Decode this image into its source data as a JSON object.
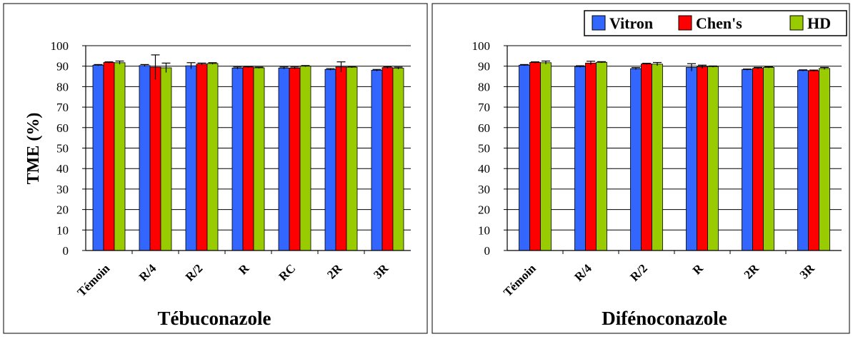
{
  "colors": {
    "vitron": "#3366FF",
    "chens": "#FF0000",
    "hd": "#99CC00",
    "frame": "#000000",
    "grid": "#000000"
  },
  "legend": {
    "placement": "top-right",
    "items": [
      {
        "label": "Vitron",
        "color": "#3366FF"
      },
      {
        "label": "Chen's",
        "color": "#FF0000"
      },
      {
        "label": "HD",
        "color": "#99CC00"
      }
    ]
  },
  "chart_data": [
    {
      "type": "bar",
      "title": "",
      "xlabel": "Tébuconazole",
      "ylabel": "TME (%)",
      "ylim": [
        0,
        100
      ],
      "yticks": [
        "0",
        "10",
        "20",
        "30",
        "40",
        "50",
        "60",
        "70",
        "80",
        "90",
        "100"
      ],
      "grid": "horizontal",
      "categories": [
        "Témoin",
        "R/4",
        "R/2",
        "R",
        "RC",
        "2R",
        "3R"
      ],
      "series": [
        {
          "name": "Vitron",
          "values": [
            90.5,
            90.3,
            90.2,
            89.1,
            89.1,
            88.4,
            88.0
          ],
          "errors": [
            0.3,
            0.5,
            1.5,
            0.5,
            0.5,
            0.4,
            0.4
          ]
        },
        {
          "name": "Chen's",
          "values": [
            91.8,
            89.5,
            91.0,
            89.6,
            89.1,
            89.6,
            89.3
          ],
          "errors": [
            0.3,
            6.0,
            0.5,
            0.3,
            0.5,
            2.5,
            0.4
          ]
        },
        {
          "name": "HD",
          "values": [
            91.7,
            89.2,
            91.3,
            89.2,
            90.0,
            89.5,
            89.0
          ],
          "errors": [
            0.8,
            2.3,
            0.4,
            0.3,
            0.3,
            0.3,
            0.5
          ]
        }
      ]
    },
    {
      "type": "bar",
      "title": "",
      "xlabel": "Difénoconazole",
      "ylabel": "",
      "ylim": [
        0,
        100
      ],
      "yticks": [
        "0",
        "10",
        "20",
        "30",
        "40",
        "50",
        "60",
        "70",
        "80",
        "90",
        "100"
      ],
      "grid": "horizontal",
      "categories": [
        "Témoin",
        "R/4",
        "R/2",
        "R",
        "2R",
        "3R"
      ],
      "series": [
        {
          "name": "Vitron",
          "values": [
            90.5,
            89.8,
            88.8,
            89.4,
            88.3,
            87.9
          ],
          "errors": [
            0.3,
            0.4,
            0.5,
            1.8,
            0.3,
            0.3
          ]
        },
        {
          "name": "Chen's",
          "values": [
            91.8,
            91.5,
            91.1,
            89.7,
            89.0,
            87.8
          ],
          "errors": [
            0.3,
            0.9,
            0.3,
            0.8,
            0.4,
            0.3
          ]
        },
        {
          "name": "HD",
          "values": [
            91.7,
            91.9,
            91.0,
            89.8,
            89.4,
            88.9
          ],
          "errors": [
            0.8,
            0.3,
            0.8,
            0.3,
            0.3,
            0.5
          ]
        }
      ]
    }
  ]
}
